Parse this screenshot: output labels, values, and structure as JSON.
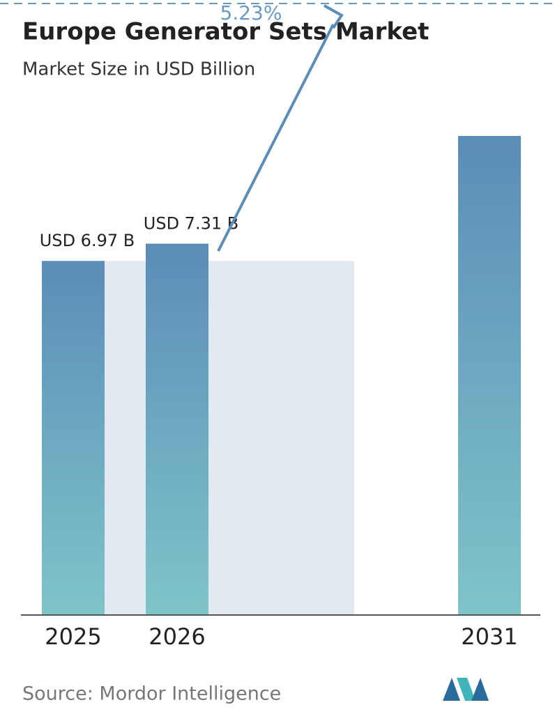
{
  "chart_data": {
    "type": "bar",
    "title": "Europe Generator Sets Market",
    "subtitle": "Market Size in USD Billion",
    "categories": [
      "2025",
      "2026",
      "2031"
    ],
    "values": [
      6.97,
      7.31,
      9.43
    ],
    "value_labels": [
      "USD 6.97 B",
      "USD 7.31 B",
      null
    ],
    "annotation": "5.23%",
    "source": "Source: Mordor Intelligence",
    "color": [
      "#5b8db8",
      "#7fc4c9"
    ]
  }
}
